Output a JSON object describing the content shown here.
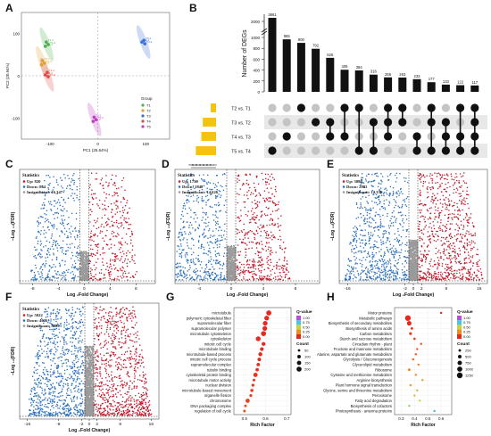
{
  "panels": {
    "A": {
      "letter": "A",
      "chart_data": {
        "type": "scatter",
        "xlabel": "PC1 (25.64%)",
        "ylabel": "PC2 (20.94%)",
        "xticks": [
          "-100",
          "0",
          "100"
        ],
        "yticks": [
          "100",
          "0",
          "-100"
        ],
        "xlim": [
          -160,
          150
        ],
        "ylim": [
          -150,
          150
        ],
        "legend_title": "Group",
        "legend": [
          {
            "name": "T1",
            "color": "#4caf50"
          },
          {
            "name": "T2",
            "color": "#e0a030"
          },
          {
            "name": "T3",
            "color": "#3a6fd8"
          },
          {
            "name": "T4",
            "color": "#e04a4a"
          },
          {
            "name": "T5",
            "color": "#c040c0"
          }
        ],
        "series": [
          {
            "name": "T1",
            "color": "#4caf50",
            "points": [
              [
                -108,
                80
              ],
              [
                -104,
                74
              ],
              [
                -110,
                70
              ]
            ],
            "labels": [
              "T1-1",
              "T1-2",
              "T1-3"
            ]
          },
          {
            "name": "T2",
            "color": "#e0a030",
            "points": [
              [
                -116,
                36
              ],
              [
                -112,
                30
              ],
              [
                -118,
                26
              ]
            ],
            "labels": [
              "T2-1",
              "T2-2",
              "T2-3"
            ]
          },
          {
            "name": "T3",
            "color": "#3a6fd8",
            "points": [
              [
                92,
                80
              ],
              [
                96,
                84
              ],
              [
                98,
                76
              ]
            ],
            "labels": [
              "T3-1",
              "T3-2",
              "T3-3"
            ]
          },
          {
            "name": "T4",
            "color": "#e04a4a",
            "points": [
              [
                -106,
                8
              ],
              [
                -110,
                2
              ],
              [
                -104,
                -2
              ]
            ],
            "labels": [
              "T4-1",
              "T4-2",
              "T4-3"
            ]
          },
          {
            "name": "T5",
            "color": "#c040c0",
            "points": [
              [
                -8,
                -98
              ],
              [
                -4,
                -104
              ],
              [
                -10,
                -108
              ]
            ],
            "labels": [
              "T5-1",
              "T5-2",
              "T5-3"
            ]
          }
        ]
      }
    },
    "B": {
      "letter": "B",
      "chart_data": {
        "type": "bar",
        "ylabel": "Number of DEGs",
        "yticks": [
          "0",
          "200",
          "400",
          "600",
          "800",
          "1000",
          "2000"
        ],
        "bar_values": [
          3861,
          965,
          900,
          792,
          625,
          406,
          394,
          316,
          266,
          263,
          233,
          177,
          133,
          122,
          117
        ],
        "sets": [
          "T2 vs. T1",
          "T3 vs. T2",
          "T4 vs. T3",
          "T5 vs. T4"
        ],
        "set_sizes": [
          1600,
          4000,
          4450,
          6100
        ],
        "set_axis_ticks": [
          "7000",
          "6000",
          "5000",
          "4000",
          "3000",
          "2000",
          "1000",
          "0"
        ],
        "set_xlim": [
          0,
          7000
        ],
        "matrix": [
          [
            3
          ],
          [
            2
          ],
          [
            0
          ],
          [
            1
          ],
          [
            1,
            2
          ],
          [
            0,
            2
          ],
          [
            0,
            3
          ],
          [
            1,
            3
          ],
          [
            0,
            1,
            2
          ],
          [
            0,
            1
          ],
          [
            2,
            3
          ],
          [
            0,
            1,
            3
          ],
          [
            1,
            2,
            3
          ],
          [
            0,
            2,
            3
          ],
          [
            0,
            1,
            2,
            3
          ]
        ]
      }
    },
    "C": {
      "letter": "C",
      "chart_data": {
        "type": "scatter",
        "xlabel": "Log ₂Fold Change)",
        "ylabel": "−Log ₁₀(FDR)",
        "xticks": [
          "-8",
          "-4",
          "0",
          "4",
          "8"
        ],
        "xlim": [
          -10,
          11
        ],
        "stats_title": "Statistics",
        "stats": [
          "Up: 820",
          "Down: 864",
          "Insignificant: 16,347"
        ],
        "up": 820,
        "down": 864,
        "insignificant": 16347
      }
    },
    "D": {
      "letter": "D",
      "chart_data": {
        "type": "scatter",
        "xlabel": "Log ₂Fold Change)",
        "ylabel": "−Log ₁₀(FDR)",
        "xticks": [
          "-4",
          "0",
          "4",
          "8"
        ],
        "xlim": [
          -7,
          11
        ],
        "stats_title": "Statistics",
        "stats": [
          "Up: 1759",
          "Down: 1848",
          "Insignificant: 14,626"
        ],
        "up": 1759,
        "down": 1848,
        "insignificant": 14626
      }
    },
    "E": {
      "letter": "E",
      "chart_data": {
        "type": "scatter",
        "xlabel": "Log ₂Fold Change)",
        "ylabel": "−Log ₁₀(FDR)",
        "xticks": [
          "-16",
          "-2",
          "0",
          "2",
          "8",
          "16"
        ],
        "xlim": [
          -18,
          18
        ],
        "stats_title": "Statistics",
        "stats": [
          "Up: 3080",
          "Down: 2881",
          "Insignificant: 12,336"
        ],
        "up": 3080,
        "down": 2881,
        "insignificant": 12336
      }
    },
    "F": {
      "letter": "F",
      "chart_data": {
        "type": "scatter",
        "xlabel": "Log ₂Fold Change)",
        "ylabel": "−Log ₁₀(FDR)",
        "xticks": [
          "-16",
          "-8",
          "-2",
          "0",
          "2",
          "8",
          "16"
        ],
        "xlim": [
          -18,
          18
        ],
        "stats_title": "Statistics",
        "stats": [
          "Up: 5022",
          "Down: 4626",
          "Insignificant: 9889"
        ],
        "up": 5022,
        "down": 4626,
        "insignificant": 9889
      }
    },
    "G": {
      "letter": "G",
      "chart_data": {
        "type": "scatter",
        "xlabel": "Rich Factor",
        "xticks": [
          "0.5",
          "0.6",
          "0.7"
        ],
        "xlim": [
          0.45,
          0.72
        ],
        "categories": [
          "microtubule",
          "polymeric cytoskeletal fiber",
          "supramolecular fiber",
          "supramolecular polymer",
          "microtubule cytoskeleton",
          "cytoskeleton",
          "mitotic cell cycle",
          "microtubule binding",
          "microtubule-based process",
          "mitotic cell cycle process",
          "supramolecular complex",
          "tubulin binding",
          "cytoskeletal protein binding",
          "microtubule motor activity",
          "nuclear division",
          "microtubule-based movement",
          "organelle fission",
          "chromosome",
          "DNA packaging complex",
          "regulation of cell cycle"
        ],
        "rich_factor": [
          0.615,
          0.605,
          0.598,
          0.596,
          0.59,
          0.565,
          0.59,
          0.582,
          0.575,
          0.57,
          0.565,
          0.56,
          0.552,
          0.545,
          0.54,
          0.535,
          0.53,
          0.515,
          0.505,
          0.5
        ],
        "count": [
          210,
          180,
          175,
          170,
          200,
          190,
          120,
          110,
          130,
          100,
          95,
          90,
          150,
          60,
          70,
          80,
          65,
          140,
          50,
          55
        ],
        "qvalue": [
          0.0,
          0.0,
          0.0,
          0.0,
          0.0,
          0.01,
          0.0,
          0.0,
          0.01,
          0.01,
          0.02,
          0.02,
          0.03,
          0.03,
          0.04,
          0.05,
          0.05,
          0.06,
          0.08,
          0.1
        ],
        "legend_color_title": "Q-value",
        "color_ticks": [
          "1.00",
          "0.75",
          "0.50",
          "0.25",
          "0.00"
        ],
        "legend_size_title": "Count",
        "size_ticks": [
          "50",
          "100",
          "150",
          "200"
        ]
      }
    },
    "H": {
      "letter": "H",
      "chart_data": {
        "type": "scatter",
        "xlabel": "Rich Factor",
        "xticks": [
          "0.3",
          "0.4",
          "0.5",
          "0.6"
        ],
        "xlim": [
          0.25,
          0.68
        ],
        "categories": [
          "Motor proteins",
          "Metabolic pathways",
          "Biosynthesis of secondary metabolites",
          "Biosynthesis of amino acids",
          "Carbon metabolism",
          "Starch and sucrose metabolism",
          "Circadian rhythm - plant",
          "Fructose and mannose metabolism",
          "Alanine, aspartate and glutamate metabolism",
          "Glycolysis / Gluconeogenesis",
          "Glycerolipid metabolism",
          "Ribosome",
          "Cysteine and methionine metabolism",
          "Arginine biosynthesis",
          "Plant hormone signal transduction",
          "Glycine, serine and threonine metabolism",
          "Peroxisome",
          "Fatty acid degradation",
          "Biosynthesis of cofactors",
          "Photosynthesis - antenna proteins"
        ],
        "rich_factor": [
          0.6,
          0.35,
          0.36,
          0.38,
          0.37,
          0.4,
          0.45,
          0.42,
          0.41,
          0.39,
          0.43,
          0.36,
          0.41,
          0.46,
          0.37,
          0.42,
          0.4,
          0.44,
          0.36,
          0.55
        ],
        "count": [
          60,
          1250,
          800,
          250,
          300,
          200,
          80,
          90,
          100,
          150,
          110,
          250,
          120,
          70,
          200,
          90,
          110,
          70,
          150,
          40
        ],
        "qvalue": [
          0.0,
          0.0,
          0.0,
          0.02,
          0.03,
          0.05,
          0.08,
          0.1,
          0.12,
          0.15,
          0.2,
          0.22,
          0.25,
          0.3,
          0.35,
          0.4,
          0.45,
          0.5,
          0.6,
          0.8
        ],
        "legend_color_title": "Q-value",
        "color_ticks": [
          "1.00",
          "0.75",
          "0.50",
          "0.25",
          "0.00"
        ],
        "legend_size_title": "Count",
        "size_ticks": [
          "250",
          "500",
          "750",
          "1000",
          "1250"
        ]
      }
    }
  }
}
